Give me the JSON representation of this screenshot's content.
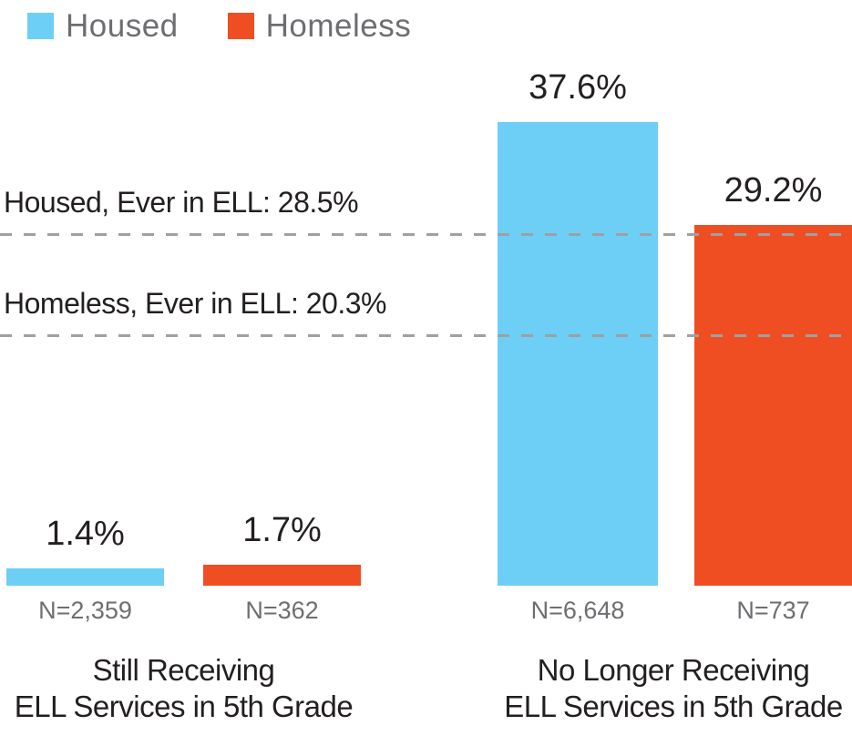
{
  "colors": {
    "housed": "#6DCFF6",
    "homeless": "#EF4E23",
    "muted_text": "#6D6E71",
    "dark_text": "#231F20",
    "reference_line": "#9EA0A3",
    "background": "#FFFFFF"
  },
  "legend": {
    "items": [
      {
        "label": "Housed",
        "color": "#6DCFF6"
      },
      {
        "label": "Homeless",
        "color": "#EF4E23"
      }
    ]
  },
  "chart_data": {
    "type": "bar",
    "unit": "percent",
    "title": "",
    "categories": [
      "Still Receiving ELL Services in 5th Grade",
      "No Longer Receiving ELL Services in 5th Grade"
    ],
    "category_label_lines": [
      [
        "Still Receiving",
        "ELL Services in 5th Grade"
      ],
      [
        "No Longer Receiving",
        "ELL Services in 5th Grade"
      ]
    ],
    "series": [
      {
        "name": "Housed",
        "color": "#6DCFF6",
        "values": [
          1.4,
          37.6
        ]
      },
      {
        "name": "Homeless",
        "color": "#EF4E23",
        "values": [
          1.7,
          29.2
        ]
      }
    ],
    "value_labels": [
      "1.4%",
      "1.7%",
      "37.6%",
      "29.2%"
    ],
    "sample_sizes": [
      "N=2,359",
      "N=362",
      "N=6,648",
      "N=737"
    ],
    "reference_lines": [
      {
        "label": "Housed, Ever in ELL: 28.5%",
        "value": 28.5
      },
      {
        "label": "Homeless, Ever in ELL: 20.3%",
        "value": 20.3
      }
    ],
    "ylim": [
      0,
      40
    ],
    "grid": false,
    "legend_position": "top-left"
  }
}
